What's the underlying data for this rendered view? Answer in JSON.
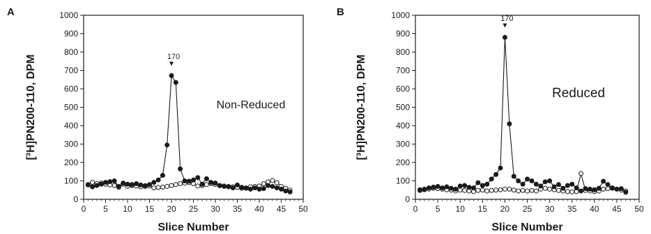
{
  "chart_data": [
    {
      "type": "line",
      "panel": "A",
      "title": "",
      "xlabel": "Slice Number",
      "ylabel": "[³H]PN200-110, DPM",
      "xlim": [
        0,
        50
      ],
      "ylim": [
        0,
        1000
      ],
      "xticks": [
        "0",
        "5",
        "10",
        "15",
        "20",
        "25",
        "30",
        "35",
        "40",
        "45",
        "50"
      ],
      "yticks": [
        "0",
        "100",
        "200",
        "300",
        "400",
        "500",
        "600",
        "700",
        "800",
        "900",
        "1000"
      ],
      "annotation": "Non-Reduced",
      "marker": {
        "label": "170",
        "x": 20
      },
      "series": [
        {
          "marker": "filled-circle",
          "x": [
            1,
            2,
            3,
            4,
            5,
            6,
            7,
            8,
            9,
            10,
            11,
            12,
            13,
            14,
            15,
            16,
            17,
            18,
            19,
            20,
            21,
            22,
            23,
            24,
            25,
            26,
            27,
            28,
            29,
            30,
            31,
            32,
            33,
            34,
            35,
            36,
            37,
            38,
            39,
            40,
            41,
            42,
            43,
            44,
            45,
            46,
            47
          ],
          "y": [
            78,
            68,
            75,
            82,
            92,
            96,
            100,
            70,
            88,
            82,
            80,
            85,
            78,
            74,
            80,
            92,
            105,
            130,
            295,
            672,
            635,
            165,
            100,
            98,
            105,
            118,
            82,
            112,
            92,
            88,
            75,
            70,
            68,
            62,
            78,
            65,
            60,
            55,
            62,
            55,
            58,
            75,
            70,
            62,
            55,
            45,
            40
          ]
        },
        {
          "marker": "open-circle",
          "x": [
            1,
            2,
            3,
            4,
            5,
            6,
            7,
            8,
            9,
            10,
            11,
            12,
            13,
            14,
            15,
            16,
            17,
            18,
            19,
            20,
            21,
            22,
            23,
            24,
            25,
            26,
            27,
            28,
            29,
            30,
            31,
            32,
            33,
            34,
            35,
            36,
            37,
            38,
            39,
            40,
            41,
            42,
            43,
            44,
            45,
            46,
            47
          ],
          "y": [
            80,
            92,
            85,
            88,
            82,
            78,
            75,
            65,
            82,
            70,
            74,
            72,
            68,
            70,
            72,
            62,
            64,
            66,
            70,
            75,
            80,
            85,
            88,
            90,
            85,
            72,
            75,
            80,
            85,
            80,
            74,
            72,
            70,
            68,
            65,
            60,
            62,
            68,
            70,
            72,
            85,
            95,
            102,
            90,
            70,
            60,
            50
          ]
        }
      ]
    },
    {
      "type": "line",
      "panel": "B",
      "title": "",
      "xlabel": "Slice Number",
      "ylabel": "[³H]PN200-110, DPM",
      "xlim": [
        0,
        50
      ],
      "ylim": [
        0,
        1000
      ],
      "xticks": [
        "0",
        "5",
        "10",
        "15",
        "20",
        "25",
        "30",
        "35",
        "40",
        "45",
        "50"
      ],
      "yticks": [
        "0",
        "100",
        "200",
        "300",
        "400",
        "500",
        "600",
        "700",
        "800",
        "900",
        "1000"
      ],
      "annotation": "Reduced",
      "marker": {
        "label": "170",
        "x": 20
      },
      "series": [
        {
          "marker": "filled-circle",
          "x": [
            1,
            2,
            3,
            4,
            5,
            6,
            7,
            8,
            9,
            10,
            11,
            12,
            13,
            14,
            15,
            16,
            17,
            18,
            19,
            20,
            21,
            22,
            23,
            24,
            25,
            26,
            27,
            28,
            29,
            30,
            31,
            32,
            33,
            34,
            35,
            36,
            37,
            38,
            39,
            40,
            41,
            42,
            43,
            44,
            45,
            46,
            47
          ],
          "y": [
            52,
            55,
            62,
            66,
            70,
            62,
            68,
            60,
            55,
            72,
            75,
            65,
            62,
            90,
            75,
            82,
            110,
            135,
            170,
            880,
            410,
            125,
            100,
            82,
            110,
            100,
            82,
            72,
            95,
            100,
            68,
            80,
            60,
            75,
            82,
            62,
            45,
            58,
            55,
            52,
            60,
            98,
            80,
            62,
            55,
            58,
            38
          ]
        },
        {
          "marker": "open-circle",
          "x": [
            1,
            2,
            3,
            4,
            5,
            6,
            7,
            8,
            9,
            10,
            11,
            12,
            13,
            14,
            15,
            16,
            17,
            18,
            19,
            20,
            21,
            22,
            23,
            24,
            25,
            26,
            27,
            28,
            29,
            30,
            31,
            32,
            33,
            34,
            35,
            36,
            37,
            38,
            39,
            40,
            41,
            42,
            43,
            44,
            45,
            46,
            47
          ],
          "y": [
            48,
            52,
            55,
            60,
            58,
            55,
            52,
            50,
            45,
            50,
            48,
            45,
            42,
            48,
            50,
            45,
            48,
            50,
            52,
            55,
            55,
            50,
            45,
            48,
            45,
            48,
            45,
            55,
            60,
            55,
            52,
            48,
            45,
            42,
            40,
            42,
            140,
            48,
            45,
            42,
            45,
            55,
            58,
            60,
            55,
            50,
            45
          ]
        }
      ]
    }
  ]
}
